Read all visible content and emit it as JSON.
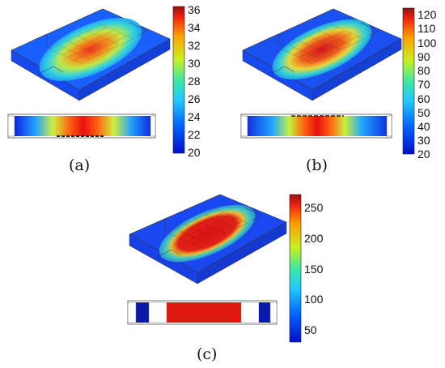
{
  "panels": [
    {
      "caption": "(a)",
      "colorbar": {
        "min": 20,
        "max": 36,
        "ticks": [
          "36",
          "34",
          "32",
          "30",
          "28",
          "26",
          "24",
          "22",
          "20"
        ]
      }
    },
    {
      "caption": "(b)",
      "colorbar": {
        "min": 20,
        "max": 125,
        "ticks": [
          "120",
          "110",
          "100",
          "90",
          "80",
          "70",
          "60",
          "50",
          "40",
          "30",
          "20"
        ]
      }
    },
    {
      "caption": "(c)",
      "colorbar": {
        "min": 25,
        "max": 265,
        "ticks": [
          "250",
          "200",
          "150",
          "100",
          "50"
        ]
      }
    }
  ],
  "colors": {
    "low": "#0a1fd0",
    "mid": "#35d8d0",
    "high": "#e01010",
    "max": "#7a0a0a"
  }
}
